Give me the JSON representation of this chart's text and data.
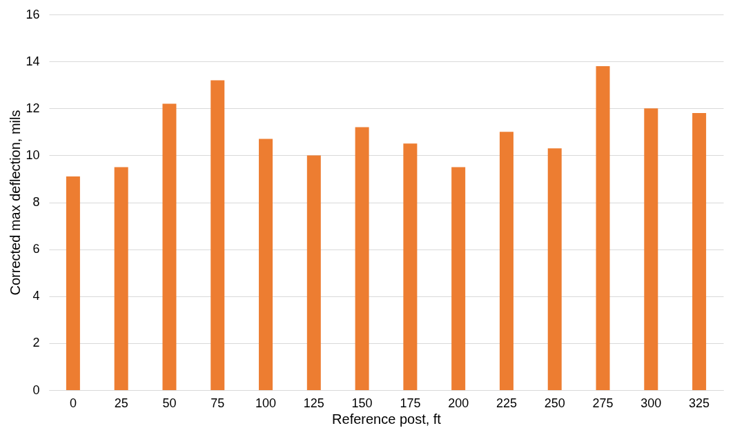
{
  "chart_data": {
    "type": "bar",
    "xlabel": "Reference post, ft",
    "ylabel": "Corrected max deflection, mils",
    "categories": [
      "0",
      "25",
      "50",
      "75",
      "100",
      "125",
      "150",
      "175",
      "200",
      "225",
      "250",
      "275",
      "300",
      "325"
    ],
    "values": [
      9.1,
      9.5,
      12.2,
      13.2,
      10.7,
      10.0,
      11.2,
      10.5,
      9.5,
      11.0,
      10.3,
      13.8,
      12.0,
      11.8
    ],
    "color": "#ed7d31",
    "ylim": [
      0,
      16
    ],
    "yticks": [
      0,
      2,
      4,
      6,
      8,
      10,
      12,
      14,
      16
    ],
    "grid": "y"
  }
}
